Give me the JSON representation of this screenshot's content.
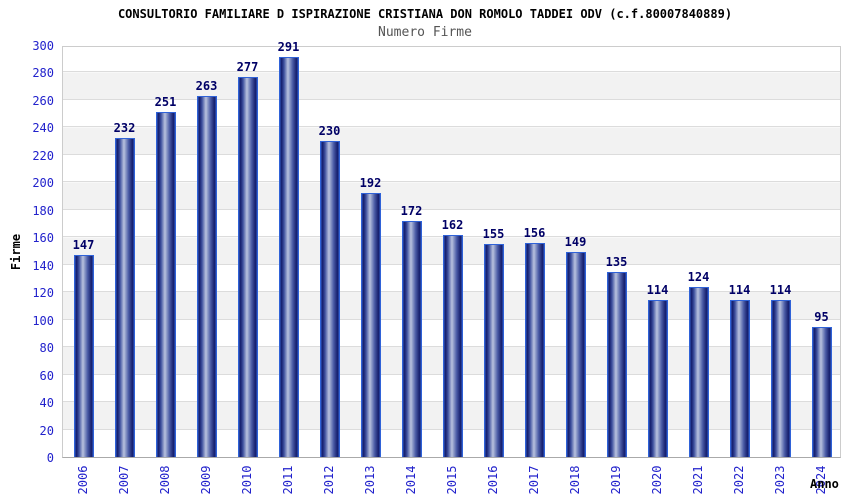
{
  "chart_data": {
    "type": "bar",
    "title": "CONSULTORIO FAMILIARE D ISPIRAZIONE CRISTIANA DON ROMOLO TADDEI ODV (c.f.80007840889)",
    "subtitle": "Numero Firme",
    "xlabel": "Anno",
    "ylabel": "Firme",
    "categories": [
      "2006",
      "2007",
      "2008",
      "2009",
      "2010",
      "2011",
      "2012",
      "2013",
      "2014",
      "2015",
      "2016",
      "2017",
      "2018",
      "2019",
      "2020",
      "2021",
      "2022",
      "2023",
      "2024"
    ],
    "values": [
      147,
      232,
      251,
      263,
      277,
      291,
      230,
      192,
      172,
      162,
      155,
      156,
      149,
      135,
      114,
      124,
      114,
      114,
      95
    ],
    "ylim": [
      0,
      300
    ],
    "ytick_step": 20,
    "grid": "horizontal gridlines with alternating white/grey bands",
    "legend": "none",
    "colors": {
      "bar_fill_dark": "#141c6a",
      "bar_fill_light": "#b9c2de",
      "bar_outline": "#2f62d8",
      "axis_tick_label": "#2222cc",
      "value_label": "#000066",
      "title": "#000000",
      "subtitle": "#555555",
      "band": "#f2f2f2",
      "gridline": "#dcdcdc",
      "background": "#ffffff"
    }
  }
}
